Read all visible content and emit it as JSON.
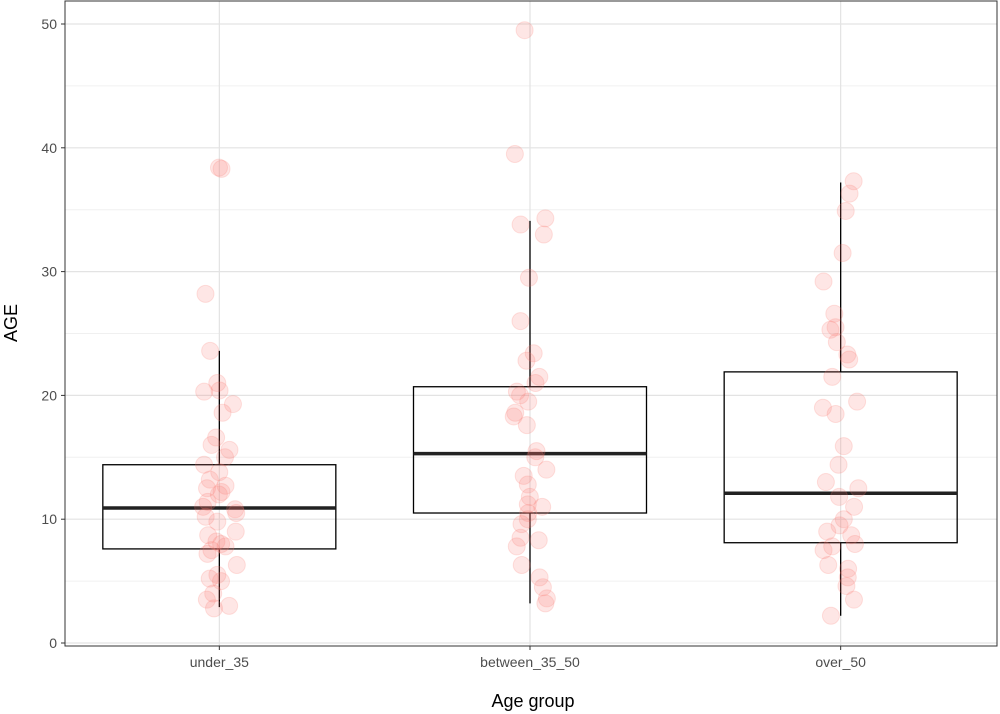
{
  "chart_data": {
    "type": "boxplot",
    "title": "",
    "xlabel": "Age group",
    "ylabel": "AGE",
    "ylim": [
      0,
      50
    ],
    "yticks": [
      0,
      10,
      20,
      30,
      40,
      50
    ],
    "grid": true,
    "categories": [
      "under_35",
      "between_35_50",
      "over_50"
    ],
    "point_color": "#F8766D",
    "boxes": [
      {
        "category": "under_35",
        "whisker_low": 2.9,
        "q1": 7.6,
        "median": 10.9,
        "q3": 14.4,
        "whisker_high": 23.6
      },
      {
        "category": "between_35_50",
        "whisker_low": 3.2,
        "q1": 10.5,
        "median": 15.3,
        "q3": 20.7,
        "whisker_high": 34.1
      },
      {
        "category": "over_50",
        "whisker_low": 2.2,
        "q1": 8.1,
        "median": 12.1,
        "q3": 21.9,
        "whisker_high": 37.2
      }
    ],
    "points": [
      {
        "category": "under_35",
        "values": [
          38.4,
          38.3,
          28.2,
          23.6,
          21.0,
          20.4,
          20.3,
          19.3,
          18.6,
          16.6,
          16.0,
          15.6,
          15.0,
          14.4,
          13.8,
          13.2,
          12.7,
          12.5,
          12.2,
          12.0,
          11.4,
          11.0,
          10.8,
          10.5,
          10.2,
          9.8,
          9.0,
          8.7,
          8.2,
          8.0,
          7.8,
          7.5,
          7.2,
          6.3,
          5.5,
          5.2,
          5.0,
          4.0,
          3.5,
          3.0,
          2.8
        ]
      },
      {
        "category": "between_35_50",
        "values": [
          49.5,
          39.5,
          34.3,
          33.8,
          33.0,
          29.5,
          26.0,
          23.4,
          22.8,
          21.5,
          21.0,
          20.3,
          20.0,
          19.5,
          18.6,
          18.3,
          17.6,
          15.5,
          15.0,
          14.0,
          13.5,
          12.8,
          11.8,
          11.2,
          11.0,
          10.5,
          10.0,
          9.6,
          8.5,
          8.3,
          7.8,
          6.3,
          5.3,
          4.5,
          3.6,
          3.2
        ]
      },
      {
        "category": "over_50",
        "values": [
          37.3,
          36.3,
          34.9,
          31.5,
          29.2,
          26.6,
          25.5,
          25.3,
          24.3,
          23.3,
          22.9,
          21.5,
          19.5,
          19.0,
          18.5,
          15.9,
          14.4,
          13.0,
          12.5,
          11.8,
          11.0,
          10.0,
          9.5,
          9.0,
          8.7,
          8.0,
          7.8,
          7.5,
          6.3,
          6.0,
          5.3,
          4.6,
          3.5,
          2.2
        ]
      }
    ]
  }
}
